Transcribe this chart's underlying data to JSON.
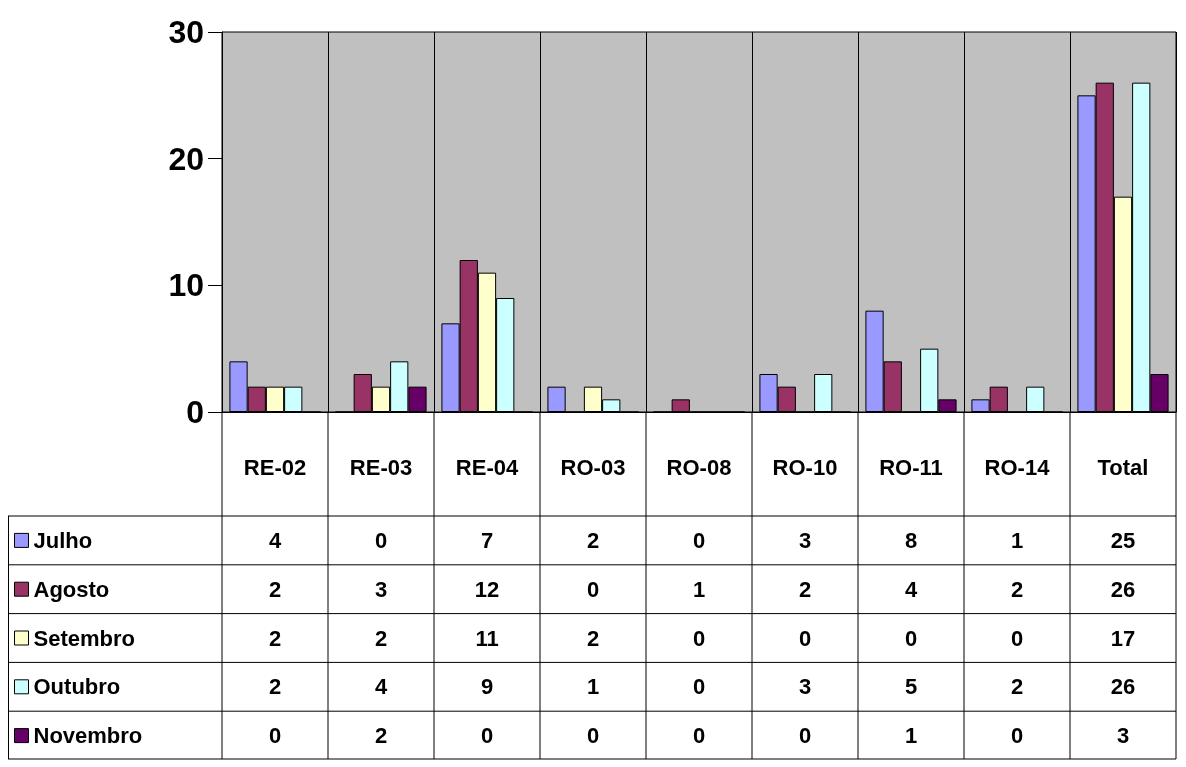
{
  "chart_data": {
    "type": "bar",
    "categories": [
      "RE-02",
      "RE-03",
      "RE-04",
      "RO-03",
      "RO-08",
      "RO-10",
      "RO-11",
      "RO-14",
      "Total"
    ],
    "series": [
      {
        "name": "Julho",
        "color": "#9999ff",
        "values": [
          4,
          0,
          7,
          2,
          0,
          3,
          8,
          1,
          25
        ]
      },
      {
        "name": "Agosto",
        "color": "#993366",
        "values": [
          2,
          3,
          12,
          0,
          1,
          2,
          4,
          2,
          26
        ]
      },
      {
        "name": "Setembro",
        "color": "#ffffcc",
        "values": [
          2,
          2,
          11,
          2,
          0,
          0,
          0,
          0,
          17
        ]
      },
      {
        "name": "Outubro",
        "color": "#ccffff",
        "values": [
          2,
          4,
          9,
          1,
          0,
          3,
          5,
          2,
          26
        ]
      },
      {
        "name": "Novembro",
        "color": "#660066",
        "values": [
          0,
          2,
          0,
          0,
          0,
          0,
          1,
          0,
          3
        ]
      }
    ],
    "ylim": [
      0,
      30
    ],
    "yticks": [
      0,
      10,
      20,
      30
    ],
    "grid": "x",
    "legend": "bottom left",
    "data_labels": true
  }
}
